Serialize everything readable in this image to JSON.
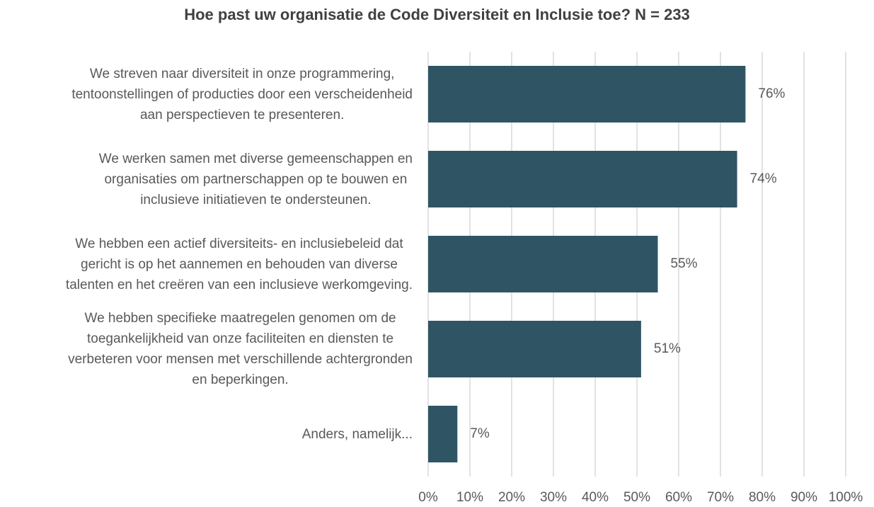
{
  "chart_data": {
    "type": "hbar",
    "title": "Hoe past uw organisatie de Code Diversiteit en Inclusie toe? N = 233",
    "categories": [
      "We streven naar diversiteit in onze programmering,\ntentoonstellingen of producties door een verscheidenheid\naan perspectieven te presenteren.",
      "We werken samen met diverse gemeenschappen en\norganisaties om partnerschappen op te bouwen en\ninclusieve initiatieven te ondersteunen.",
      "We hebben een actief diversiteits- en inclusiebeleid dat\ngericht is op het aannemen en behouden van diverse\ntalenten en het creëren van een inclusieve werkomgeving.",
      "We hebben specifieke maatregelen genomen om de\ntoegankelijkheid van onze faciliteiten en diensten te\nverbeteren voor mensen met verschillende achtergronden\nen beperkingen.",
      "Anders, namelijk..."
    ],
    "values": [
      76,
      74,
      55,
      51,
      7
    ],
    "value_labels": [
      "76%",
      "74%",
      "55%",
      "51%",
      "7%"
    ],
    "color": "#2f5564",
    "xlim": [
      0,
      100
    ],
    "xticks": [
      {
        "value": 0,
        "label": "0%"
      },
      {
        "value": 10,
        "label": "10%"
      },
      {
        "value": 20,
        "label": "20%"
      },
      {
        "value": 30,
        "label": "30%"
      },
      {
        "value": 40,
        "label": "40%"
      },
      {
        "value": 50,
        "label": "50%"
      },
      {
        "value": 60,
        "label": "60%"
      },
      {
        "value": 70,
        "label": "70%"
      },
      {
        "value": 80,
        "label": "80%"
      },
      {
        "value": 90,
        "label": "90%"
      },
      {
        "value": 100,
        "label": "100%"
      }
    ],
    "grid": true
  }
}
